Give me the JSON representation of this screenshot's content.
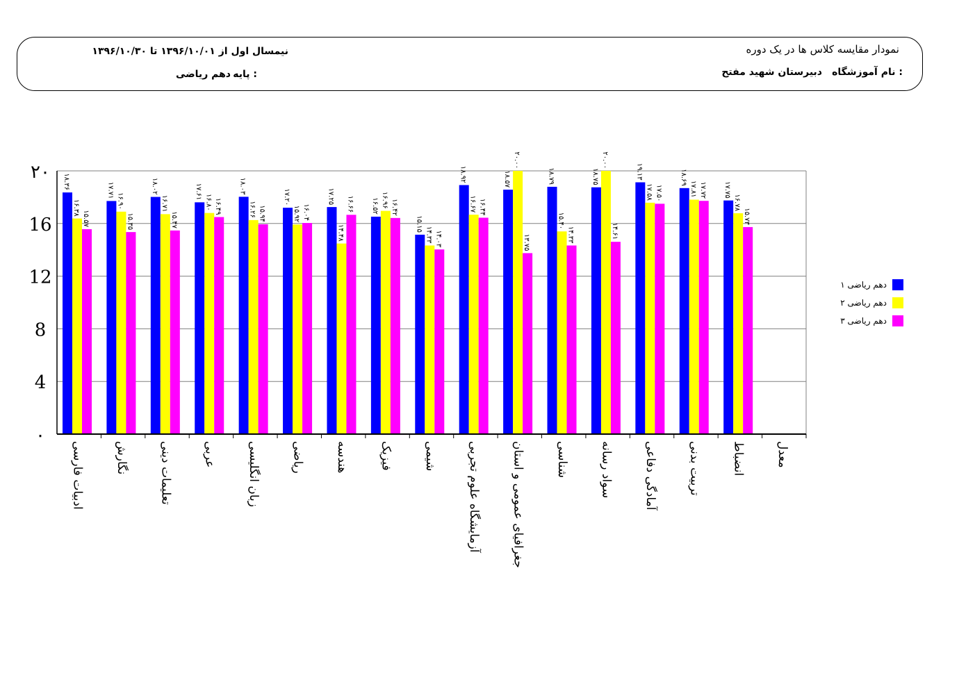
{
  "header": {
    "report_title": "نمودار مقایسه کلاس ها  در  یک دوره",
    "school_label": "نام آموزشگاه :",
    "school_name": "دبیرستان شهید مفتح",
    "period": "نیمسال اول  از ۱۳۹۶/۱۰/۰۱ تا ۱۳۹۶/۱۰/۳۰",
    "grade_label": "پایه :",
    "grade_value": "دهم ریاضی"
  },
  "colors": {
    "series1": "#0000ff",
    "series2": "#ffff00",
    "series3": "#ff00ff",
    "grid": "#808080"
  },
  "chart_data": {
    "type": "bar",
    "ylim": [
      0,
      20
    ],
    "yticks": [
      0,
      4,
      8,
      12,
      16,
      20
    ],
    "ytick_labels": [
      "۰",
      "4",
      "8",
      "12",
      "16",
      "۲۰"
    ],
    "grid": true,
    "legend_position": "right",
    "categories": [
      "ادبیات فارسی",
      "نگارش",
      "تعلیمات دینی",
      "عربی",
      "زبان انگلیسی",
      "ریاضی",
      "هندسه",
      "فیزیک",
      "شیمی",
      "آزمایشگاه علوم تجربی",
      "جغرافیای عمومی و استان",
      "شناسی",
      "سواد رسانه",
      "آمادگی دفاعی",
      "تربیت بدنی",
      "انضباط",
      "معدل"
    ],
    "series": [
      {
        "name": "دهم ریاضی ۱",
        "values": [
          18.36,
          17.71,
          18.02,
          17.61,
          18.03,
          17.2,
          17.25,
          16.52,
          15.15,
          18.92,
          18.57,
          18.79,
          18.75,
          19.13,
          18.69,
          17.75,
          null
        ],
        "labels": [
          "۱۸.۳۶",
          "۱۷.۷۱",
          "۱۸.۰۲",
          "۱۷.۶۱",
          "۱۸.۰۳",
          "۱۷.۲۰",
          "۱۷.۲۵",
          "۱۶.۵۲",
          "۱۵.۱۵",
          "۱۸.۹۲",
          "۱۸.۵۷",
          "۱۸.۷۹",
          "۱۸.۷۵",
          "۱۹.۱۳",
          "۱۸.۶۹",
          "۱۷.۷۵",
          ""
        ]
      },
      {
        "name": "دهم ریاضی ۲",
        "values": [
          16.38,
          16.9,
          16.71,
          16.8,
          16.26,
          15.92,
          14.48,
          16.96,
          14.33,
          16.67,
          20.0,
          15.4,
          20.0,
          17.58,
          17.81,
          16.78,
          null
        ],
        "labels": [
          "۱۶.۳۸",
          "۱۶.۹۰",
          "۱۶.۷۱",
          "۱۶.۸۰",
          "۱۶.۲۶",
          "۱۵.۹۲",
          "۱۴.۴۸",
          "۱۶.۹۶",
          "۱۴.۳۳",
          "۱۶.۶۷",
          "۲۰.۰۰",
          "۱۵.۴۰",
          "۲۰.۰۰",
          "۱۷.۵۸",
          "۱۷.۸۱",
          "۱۶.۷۸",
          ""
        ]
      },
      {
        "name": "دهم ریاضی ۳",
        "values": [
          15.57,
          15.35,
          15.47,
          16.49,
          15.94,
          16.04,
          16.66,
          16.42,
          14.03,
          16.44,
          13.75,
          14.33,
          14.61,
          17.5,
          17.72,
          15.73,
          null
        ],
        "labels": [
          "۱۵.۵۷",
          "۱۵.۳۵",
          "۱۵.۴۷",
          "۱۶.۴۹",
          "۱۵.۹۴",
          "۱۶.۰۴",
          "۱۶.۶۶",
          "۱۶.۴۲",
          "۱۴.۰۳",
          "۱۶.۴۴",
          "۱۳.۷۵",
          "۱۴.۳۳",
          "۱۴.۶۱",
          "۱۷.۵۰",
          "۱۷.۷۲",
          "۱۵.۷۳",
          ""
        ]
      }
    ]
  }
}
